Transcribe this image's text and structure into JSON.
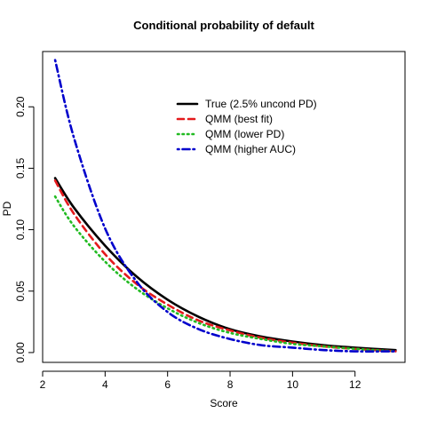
{
  "chart_data": {
    "type": "line",
    "title": "Conditional probability of default",
    "xlabel": "Score",
    "ylabel": "PD",
    "xlim": [
      2.0,
      13.6
    ],
    "ylim": [
      -0.008,
      0.245
    ],
    "x_ticks": [
      2,
      4,
      6,
      8,
      10,
      12
    ],
    "y_ticks": [
      0.0,
      0.05,
      0.1,
      0.15,
      0.2
    ],
    "y_tick_labels": [
      "0.00",
      "0.05",
      "0.10",
      "0.15",
      "0.20"
    ],
    "grid": false,
    "legend_position": "top-right",
    "series": [
      {
        "name": "True (2.5% uncond PD)",
        "color": "#000000",
        "dash": "solid",
        "x": [
          2.4,
          3,
          4,
          5,
          6,
          7,
          8,
          9,
          10,
          11,
          12,
          13.3
        ],
        "y": [
          0.142,
          0.118,
          0.087,
          0.062,
          0.043,
          0.029,
          0.019,
          0.013,
          0.009,
          0.006,
          0.004,
          0.002
        ]
      },
      {
        "name": "QMM (best fit)",
        "color": "#e41a1c",
        "dash": "dashed",
        "x": [
          2.4,
          3,
          4,
          5,
          6,
          7,
          8,
          9,
          10,
          11,
          12,
          13.3
        ],
        "y": [
          0.14,
          0.113,
          0.08,
          0.056,
          0.039,
          0.026,
          0.018,
          0.012,
          0.008,
          0.005,
          0.003,
          0.001
        ]
      },
      {
        "name": "QMM (lower PD)",
        "color": "#22bb22",
        "dash": "dotted",
        "x": [
          2.4,
          3,
          4,
          5,
          6,
          7,
          8,
          9,
          10,
          11,
          12,
          13.3
        ],
        "y": [
          0.127,
          0.103,
          0.074,
          0.052,
          0.036,
          0.024,
          0.016,
          0.011,
          0.007,
          0.005,
          0.003,
          0.001
        ]
      },
      {
        "name": "QMM (higher AUC)",
        "color": "#0000cc",
        "dash": "dotdash",
        "x": [
          2.4,
          3,
          4,
          5,
          6,
          7,
          8,
          9,
          10,
          11,
          12,
          13.3
        ],
        "y": [
          0.238,
          0.175,
          0.101,
          0.058,
          0.033,
          0.019,
          0.011,
          0.006,
          0.004,
          0.002,
          0.001,
          0.001
        ]
      }
    ]
  }
}
